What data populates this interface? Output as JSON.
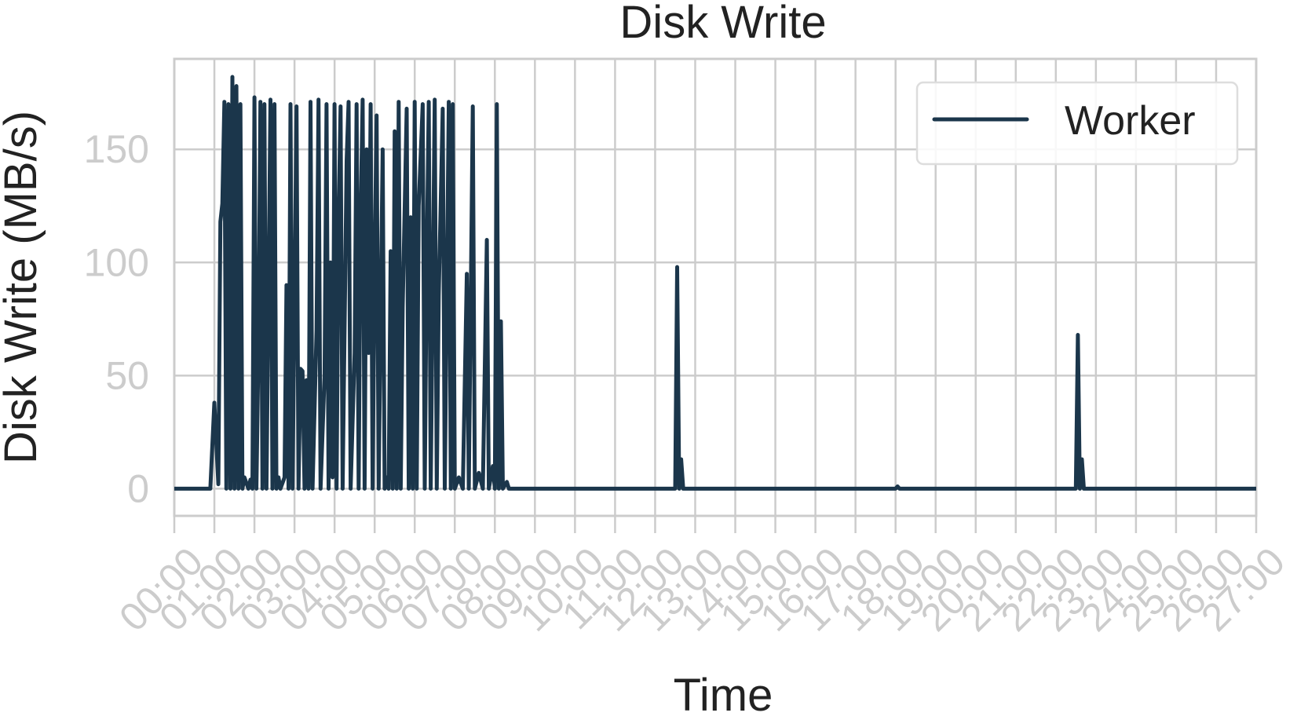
{
  "chart_data": {
    "type": "line",
    "title": "Disk Write",
    "xlabel": "Time",
    "ylabel": "Disk Write (MB/s)",
    "x_ticks": [
      "00:00",
      "01:00",
      "02:00",
      "03:00",
      "04:00",
      "05:00",
      "06:00",
      "07:00",
      "08:00",
      "09:00",
      "10:00",
      "11:00",
      "12:00",
      "13:00",
      "14:00",
      "15:00",
      "16:00",
      "17:00",
      "18:00",
      "19:00",
      "20:00",
      "21:00",
      "22:00",
      "23:00",
      "24:00",
      "25:00",
      "26:00",
      "27:00"
    ],
    "y_ticks": [
      0,
      50,
      100,
      150
    ],
    "xlim_hours": [
      0,
      27
    ],
    "ylim": [
      -12,
      190
    ],
    "grid": true,
    "legend_position": "top-right",
    "series": [
      {
        "name": "Worker",
        "color": "#1b364b",
        "points": [
          [
            0.0,
            0
          ],
          [
            0.9,
            0
          ],
          [
            1.0,
            38
          ],
          [
            1.1,
            2
          ],
          [
            1.15,
            118
          ],
          [
            1.2,
            126
          ],
          [
            1.25,
            171
          ],
          [
            1.3,
            0
          ],
          [
            1.35,
            170
          ],
          [
            1.4,
            0
          ],
          [
            1.45,
            182
          ],
          [
            1.5,
            0
          ],
          [
            1.55,
            178
          ],
          [
            1.6,
            0
          ],
          [
            1.65,
            170
          ],
          [
            1.7,
            0
          ],
          [
            1.75,
            5
          ],
          [
            1.85,
            0
          ],
          [
            1.9,
            4
          ],
          [
            1.95,
            0
          ],
          [
            2.0,
            173
          ],
          [
            2.05,
            0
          ],
          [
            2.1,
            62
          ],
          [
            2.15,
            171
          ],
          [
            2.2,
            0
          ],
          [
            2.25,
            170
          ],
          [
            2.3,
            0
          ],
          [
            2.4,
            172
          ],
          [
            2.45,
            0
          ],
          [
            2.5,
            170
          ],
          [
            2.55,
            0
          ],
          [
            2.6,
            5
          ],
          [
            2.65,
            0
          ],
          [
            2.75,
            5
          ],
          [
            2.8,
            90
          ],
          [
            2.85,
            0
          ],
          [
            2.9,
            170
          ],
          [
            2.95,
            0
          ],
          [
            3.0,
            82
          ],
          [
            3.05,
            169
          ],
          [
            3.1,
            0
          ],
          [
            3.15,
            53
          ],
          [
            3.2,
            52
          ],
          [
            3.25,
            0
          ],
          [
            3.3,
            48
          ],
          [
            3.35,
            0
          ],
          [
            3.4,
            171
          ],
          [
            3.45,
            0
          ],
          [
            3.55,
            70
          ],
          [
            3.6,
            172
          ],
          [
            3.65,
            0
          ],
          [
            3.75,
            50
          ],
          [
            3.8,
            170
          ],
          [
            3.85,
            0
          ],
          [
            3.9,
            100
          ],
          [
            3.95,
            5
          ],
          [
            4.0,
            170
          ],
          [
            4.05,
            0
          ],
          [
            4.1,
            120
          ],
          [
            4.15,
            169
          ],
          [
            4.2,
            0
          ],
          [
            4.3,
            145
          ],
          [
            4.35,
            171
          ],
          [
            4.4,
            0
          ],
          [
            4.5,
            60
          ],
          [
            4.55,
            170
          ],
          [
            4.6,
            0
          ],
          [
            4.65,
            120
          ],
          [
            4.7,
            172
          ],
          [
            4.75,
            0
          ],
          [
            4.8,
            150
          ],
          [
            4.85,
            60
          ],
          [
            4.9,
            170
          ],
          [
            4.95,
            0
          ],
          [
            5.0,
            100
          ],
          [
            5.05,
            165
          ],
          [
            5.1,
            0
          ],
          [
            5.15,
            75
          ],
          [
            5.2,
            150
          ],
          [
            5.25,
            0
          ],
          [
            5.3,
            5
          ],
          [
            5.35,
            0
          ],
          [
            5.4,
            105
          ],
          [
            5.45,
            0
          ],
          [
            5.5,
            158
          ],
          [
            5.55,
            0
          ],
          [
            5.6,
            171
          ],
          [
            5.65,
            0
          ],
          [
            5.7,
            80
          ],
          [
            5.8,
            168
          ],
          [
            5.85,
            0
          ],
          [
            5.9,
            120
          ],
          [
            5.95,
            0
          ],
          [
            6.0,
            171
          ],
          [
            6.05,
            0
          ],
          [
            6.1,
            125
          ],
          [
            6.2,
            170
          ],
          [
            6.25,
            0
          ],
          [
            6.3,
            100
          ],
          [
            6.35,
            171
          ],
          [
            6.4,
            0
          ],
          [
            6.5,
            172
          ],
          [
            6.55,
            0
          ],
          [
            6.6,
            85
          ],
          [
            6.7,
            168
          ],
          [
            6.75,
            0
          ],
          [
            6.85,
            171
          ],
          [
            6.9,
            0
          ],
          [
            6.95,
            170
          ],
          [
            7.0,
            0
          ],
          [
            7.1,
            5
          ],
          [
            7.2,
            0
          ],
          [
            7.3,
            95
          ],
          [
            7.35,
            0
          ],
          [
            7.45,
            169
          ],
          [
            7.5,
            0
          ],
          [
            7.6,
            7
          ],
          [
            7.7,
            0
          ],
          [
            7.8,
            110
          ],
          [
            7.85,
            0
          ],
          [
            7.95,
            10
          ],
          [
            8.0,
            0
          ],
          [
            8.05,
            170
          ],
          [
            8.1,
            0
          ],
          [
            8.15,
            74
          ],
          [
            8.2,
            0
          ],
          [
            8.3,
            3
          ],
          [
            8.35,
            0
          ],
          [
            12.5,
            0
          ],
          [
            12.55,
            98
          ],
          [
            12.6,
            0
          ],
          [
            12.65,
            13
          ],
          [
            12.7,
            0
          ],
          [
            18.0,
            0
          ],
          [
            18.05,
            1
          ],
          [
            18.1,
            0
          ],
          [
            22.5,
            0
          ],
          [
            22.55,
            68
          ],
          [
            22.6,
            0
          ],
          [
            22.65,
            13
          ],
          [
            22.7,
            0
          ],
          [
            27.0,
            0
          ]
        ]
      }
    ]
  }
}
